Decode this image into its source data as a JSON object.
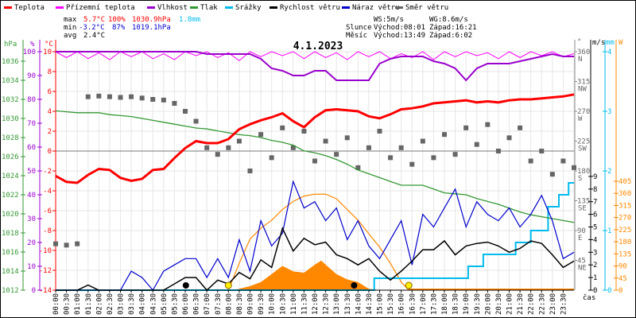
{
  "legend": [
    {
      "label": "Teplota",
      "color": "#ff0000"
    },
    {
      "label": "Přízemní teplota",
      "color": "#ff00ff"
    },
    {
      "label": "Vlhkost",
      "color": "#9900cc"
    },
    {
      "label": "Tlak",
      "color": "#339933"
    },
    {
      "label": "Srážky",
      "color": "#00bbee"
    },
    {
      "label": "Rychlost větru",
      "color": "#000000"
    },
    {
      "label": "Náraz větru",
      "color": "#0000cc"
    },
    {
      "label": "Směr větru",
      "color": "#666666"
    }
  ],
  "stats": {
    "max_label": "max",
    "max_temp": "5.7°C",
    "max_hum": "100%",
    "max_press": "1030.9hPa",
    "max_rain": "1.8mm",
    "min_label": "min",
    "min_temp": "-3.2°C",
    "min_hum": "87%",
    "min_press": "1019.1hPa",
    "avg_label": "avg",
    "avg_temp": "2.4°C"
  },
  "wind_info": {
    "ws": "WS:5m/s",
    "wg": "WG:8.6m/s"
  },
  "sun": {
    "label": "Slunce",
    "rise": "Východ:08:01",
    "set": "Západ:16:21",
    "rise_h": 8.0,
    "set_h": 16.35
  },
  "moon": {
    "label": "Měsíc",
    "rise": "Východ:13:49",
    "set": "Západ:6:02",
    "rise_h": 13.82,
    "set_h": 6.03
  },
  "colors": {
    "grid": "#e6e6e6",
    "solar": "#ff8800"
  },
  "chart_data": {
    "type": "line",
    "title": "4.1.2023",
    "xlabel": "čas",
    "x_ticks": [
      "00:00",
      "00:30",
      "01:00",
      "01:30",
      "02:00",
      "02:30",
      "03:00",
      "03:30",
      "04:00",
      "04:30",
      "05:00",
      "05:30",
      "06:00",
      "06:30",
      "07:00",
      "07:30",
      "08:00",
      "08:30",
      "09:00",
      "09:30",
      "10:00",
      "10:30",
      "11:00",
      "11:30",
      "12:00",
      "12:30",
      "13:00",
      "13:30",
      "14:00",
      "14:30",
      "15:00",
      "15:30",
      "16:00",
      "16:30",
      "17:00",
      "17:30",
      "18:00",
      "18:30",
      "19:00",
      "19:30",
      "20:00",
      "20:30",
      "21:00",
      "21:30",
      "22:00",
      "22:30",
      "23:00",
      "23:30"
    ],
    "axes": {
      "pressure": {
        "unit": "hPa",
        "range": [
          1012,
          1037
        ],
        "ticks": [
          1012,
          1014,
          1016,
          1018,
          1020,
          1022,
          1024,
          1026,
          1028,
          1030,
          1032,
          1034,
          1036
        ]
      },
      "humidity": {
        "unit": "%",
        "range": [
          0,
          100
        ],
        "ticks": [
          0,
          10,
          20,
          30,
          40,
          50,
          60,
          70,
          80,
          90,
          100
        ]
      },
      "temperature": {
        "unit": "°C",
        "range": [
          -14,
          10
        ],
        "ticks": [
          -14,
          -12,
          -10,
          -8,
          -6,
          -4,
          -2,
          0,
          2,
          4,
          6,
          8,
          10
        ]
      },
      "direction": {
        "unit": "°",
        "range": [
          0,
          360
        ],
        "ticks": [
          {
            "v": 360,
            "n": "N"
          },
          {
            "v": 315,
            "n": "NW"
          },
          {
            "v": 270,
            "n": "W"
          },
          {
            "v": 225,
            "n": "SW"
          },
          {
            "v": 180,
            "n": "S"
          },
          {
            "v": 135,
            "n": "SE"
          },
          {
            "v": 90,
            "n": "E"
          },
          {
            "v": 45,
            "n": "NE"
          }
        ]
      },
      "wind": {
        "unit": "m/s",
        "range": [
          0,
          9
        ],
        "ticks": [
          0,
          1,
          2,
          3,
          4,
          5,
          6,
          7,
          8,
          9
        ]
      },
      "rain": {
        "unit": "mm",
        "range": [
          0,
          4
        ],
        "ticks": [
          0,
          1,
          2,
          3,
          4
        ]
      },
      "solar": {
        "unit": "W",
        "range": [
          0,
          405
        ],
        "ticks": [
          0,
          45,
          90,
          135,
          180,
          225,
          270,
          315,
          360,
          405
        ]
      }
    },
    "x_hours_step": 0.5,
    "series": [
      {
        "name": "Teplota",
        "axis": "temperature",
        "values": [
          -2.5,
          -3.1,
          -3.2,
          -2.4,
          -1.8,
          -1.9,
          -2.7,
          -3.0,
          -2.8,
          -1.9,
          -1.8,
          -0.7,
          0.3,
          1.0,
          0.8,
          0.8,
          1.2,
          2.2,
          2.7,
          3.1,
          3.4,
          3.8,
          3.0,
          2.4,
          3.4,
          4.1,
          4.2,
          4.1,
          4.0,
          3.5,
          3.3,
          3.7,
          4.2,
          4.3,
          4.5,
          4.8,
          4.9,
          5.0,
          5.1,
          4.9,
          5.0,
          4.9,
          5.1,
          5.2,
          5.2,
          5.3,
          5.4,
          5.5,
          5.7
        ]
      },
      {
        "name": "Přízemní teplota",
        "axis": "temperature",
        "values": [
          10.2,
          9.4,
          10.1,
          9.3,
          9.9,
          9.2,
          10.0,
          9.5,
          10.2,
          9.3,
          9.8,
          9.2,
          10.1,
          9.6,
          10.3,
          9.4,
          9.9,
          9.1,
          10.2,
          9.5,
          10.3,
          9.6,
          10.0,
          9.3,
          10.2,
          9.4,
          9.9,
          9.2,
          10.1,
          9.5,
          10.2,
          9.3,
          9.8,
          9.4,
          10.1,
          9.2,
          10.0,
          9.5,
          10.2,
          9.6,
          9.9,
          9.3,
          10.1,
          9.4,
          10.0,
          9.6,
          10.2,
          9.5,
          9.8
        ]
      },
      {
        "name": "Vlhkost",
        "axis": "humidity",
        "values": [
          100,
          100,
          100,
          100,
          100,
          100,
          100,
          100,
          100,
          100,
          100,
          100,
          100,
          100,
          99,
          99,
          99,
          99,
          99,
          97,
          93,
          92,
          90,
          90,
          92,
          92,
          88,
          88,
          88,
          88,
          95,
          97,
          98,
          98,
          98,
          96,
          95,
          93,
          88,
          93,
          95,
          95,
          95,
          96,
          97,
          98,
          99,
          98,
          98
        ]
      },
      {
        "name": "Tlak",
        "axis": "pressure",
        "values": [
          1030.8,
          1030.7,
          1030.6,
          1030.6,
          1030.6,
          1030.4,
          1030.3,
          1030.2,
          1030.0,
          1029.8,
          1029.6,
          1029.4,
          1029.2,
          1029.0,
          1028.9,
          1028.7,
          1028.5,
          1028.3,
          1028.2,
          1028.0,
          1027.7,
          1027.5,
          1027.2,
          1026.6,
          1026.4,
          1026.1,
          1025.7,
          1025.2,
          1024.6,
          1024.2,
          1023.8,
          1023.4,
          1023.0,
          1023.0,
          1023.0,
          1022.6,
          1022.2,
          1022.1,
          1022.0,
          1021.6,
          1021.3,
          1021.0,
          1020.6,
          1020.2,
          1019.9,
          1019.7,
          1019.5,
          1019.3,
          1019.1
        ]
      },
      {
        "name": "Rychlost větru",
        "axis": "wind",
        "values": [
          0,
          0,
          0,
          0.4,
          0,
          0,
          0,
          0,
          0,
          0,
          0,
          0.5,
          1.0,
          1.0,
          0,
          0.8,
          0.5,
          1.4,
          0.9,
          2.4,
          1.8,
          4.9,
          3.1,
          4.1,
          3.6,
          3.8,
          2.8,
          2.5,
          2.0,
          2.5,
          1.5,
          0.8,
          1.5,
          2.3,
          3.2,
          3.2,
          3.9,
          2.8,
          3.5,
          3.7,
          3.8,
          3.5,
          3.0,
          3.3,
          3.9,
          3.7,
          2.8,
          1.8,
          2.3
        ]
      },
      {
        "name": "Náraz větru",
        "axis": "wind",
        "values": [
          0,
          0,
          0,
          0,
          0,
          0,
          0,
          1.5,
          1.0,
          0,
          1.5,
          2.0,
          2.5,
          2.5,
          1.0,
          2.5,
          1.0,
          4.0,
          1.5,
          5.5,
          3.5,
          4.5,
          8.6,
          6.5,
          7.0,
          5.5,
          6.5,
          4.0,
          5.5,
          3.5,
          2.5,
          4.0,
          5.5,
          2.0,
          6.0,
          5.0,
          6.5,
          8.0,
          5.0,
          7.0,
          6.0,
          5.5,
          6.5,
          5.0,
          6.0,
          7.5,
          5.5,
          2.5,
          3.0
        ]
      },
      {
        "name": "Směr větru",
        "axis": "direction",
        "values": [
          70,
          68,
          70,
          292,
          293,
          292,
          291,
          292,
          290,
          288,
          287,
          282,
          270,
          255,
          215,
          205,
          215,
          225,
          180,
          235,
          200,
          245,
          215,
          240,
          195,
          225,
          205,
          230,
          185,
          215,
          240,
          200,
          215,
          190,
          225,
          200,
          235,
          205,
          245,
          220,
          250,
          210,
          230,
          245,
          195,
          210,
          175,
          195,
          185
        ]
      }
    ],
    "rain_steps": [
      [
        0,
        0
      ],
      [
        14.75,
        0.2
      ],
      [
        19.1,
        0.4
      ],
      [
        19.8,
        0.6
      ],
      [
        21.3,
        0.8
      ],
      [
        22.0,
        1.0
      ],
      [
        22.8,
        1.4
      ],
      [
        23.3,
        1.6
      ],
      [
        23.75,
        1.8
      ],
      [
        24,
        1.8
      ]
    ],
    "solar_theoretical": [
      [
        8.0,
        0
      ],
      [
        8.5,
        100
      ],
      [
        9.0,
        190
      ],
      [
        9.5,
        230
      ],
      [
        10.0,
        260
      ],
      [
        10.5,
        300
      ],
      [
        11.0,
        330
      ],
      [
        11.5,
        350
      ],
      [
        12.0,
        357
      ],
      [
        12.5,
        357
      ],
      [
        13.0,
        340
      ],
      [
        13.5,
        300
      ],
      [
        14.0,
        260
      ],
      [
        14.5,
        210
      ],
      [
        15.0,
        160
      ],
      [
        15.5,
        100
      ],
      [
        16.0,
        30
      ],
      [
        16.35,
        0
      ]
    ],
    "solar_actual": [
      [
        8.3,
        0
      ],
      [
        8.5,
        5
      ],
      [
        9.0,
        15
      ],
      [
        9.5,
        30
      ],
      [
        10.0,
        60
      ],
      [
        10.5,
        90
      ],
      [
        11.0,
        70
      ],
      [
        11.5,
        65
      ],
      [
        12.0,
        95
      ],
      [
        12.3,
        110
      ],
      [
        12.5,
        95
      ],
      [
        13.0,
        60
      ],
      [
        13.5,
        40
      ],
      [
        14.0,
        30
      ],
      [
        14.5,
        5
      ],
      [
        15.0,
        0
      ]
    ]
  }
}
